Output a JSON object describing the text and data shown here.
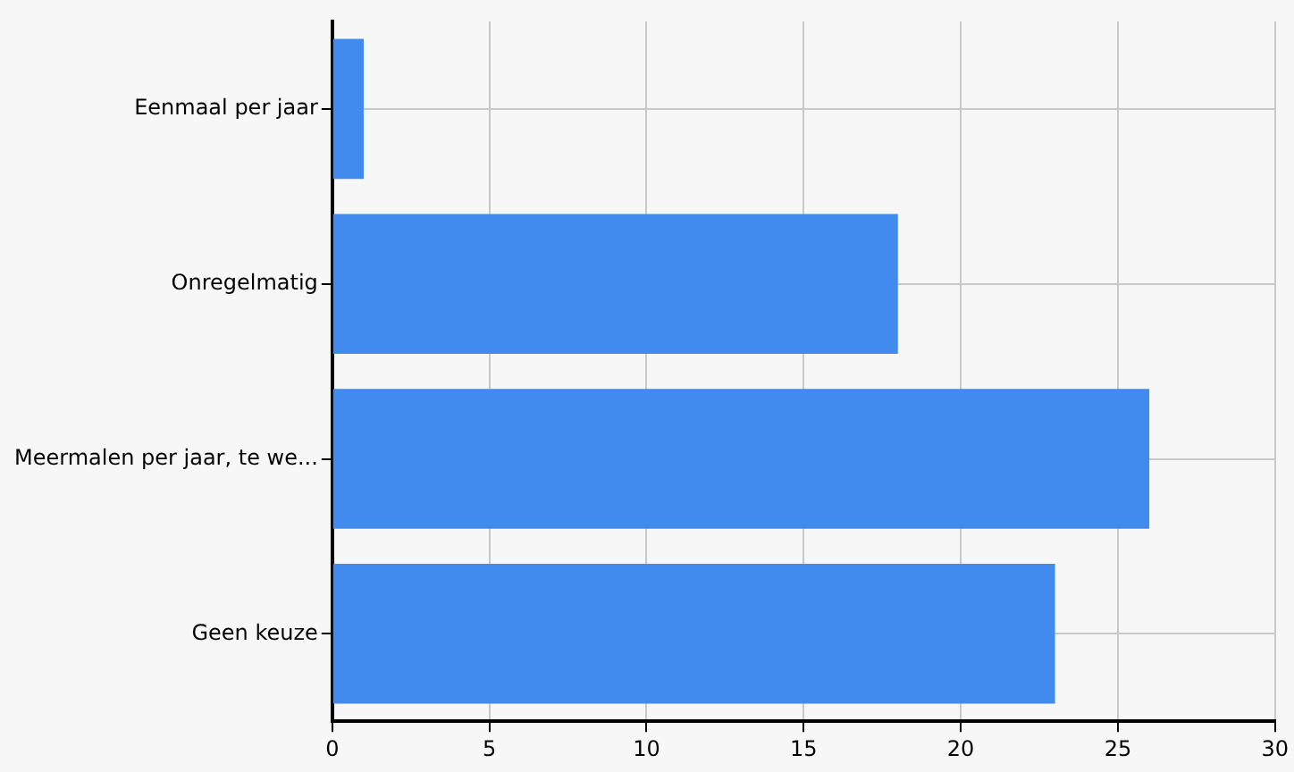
{
  "chart_data": {
    "type": "bar",
    "orientation": "horizontal",
    "categories": [
      "Eenmaal per jaar",
      "Onregelmatig",
      "Meermalen per jaar, te we...",
      "Geen keuze"
    ],
    "values": [
      1,
      18,
      26,
      23
    ],
    "color": "#418bef",
    "xlim": [
      0,
      30
    ],
    "xticks": [
      0,
      5,
      10,
      15,
      20,
      25,
      30
    ],
    "grid": true,
    "legend": false
  }
}
